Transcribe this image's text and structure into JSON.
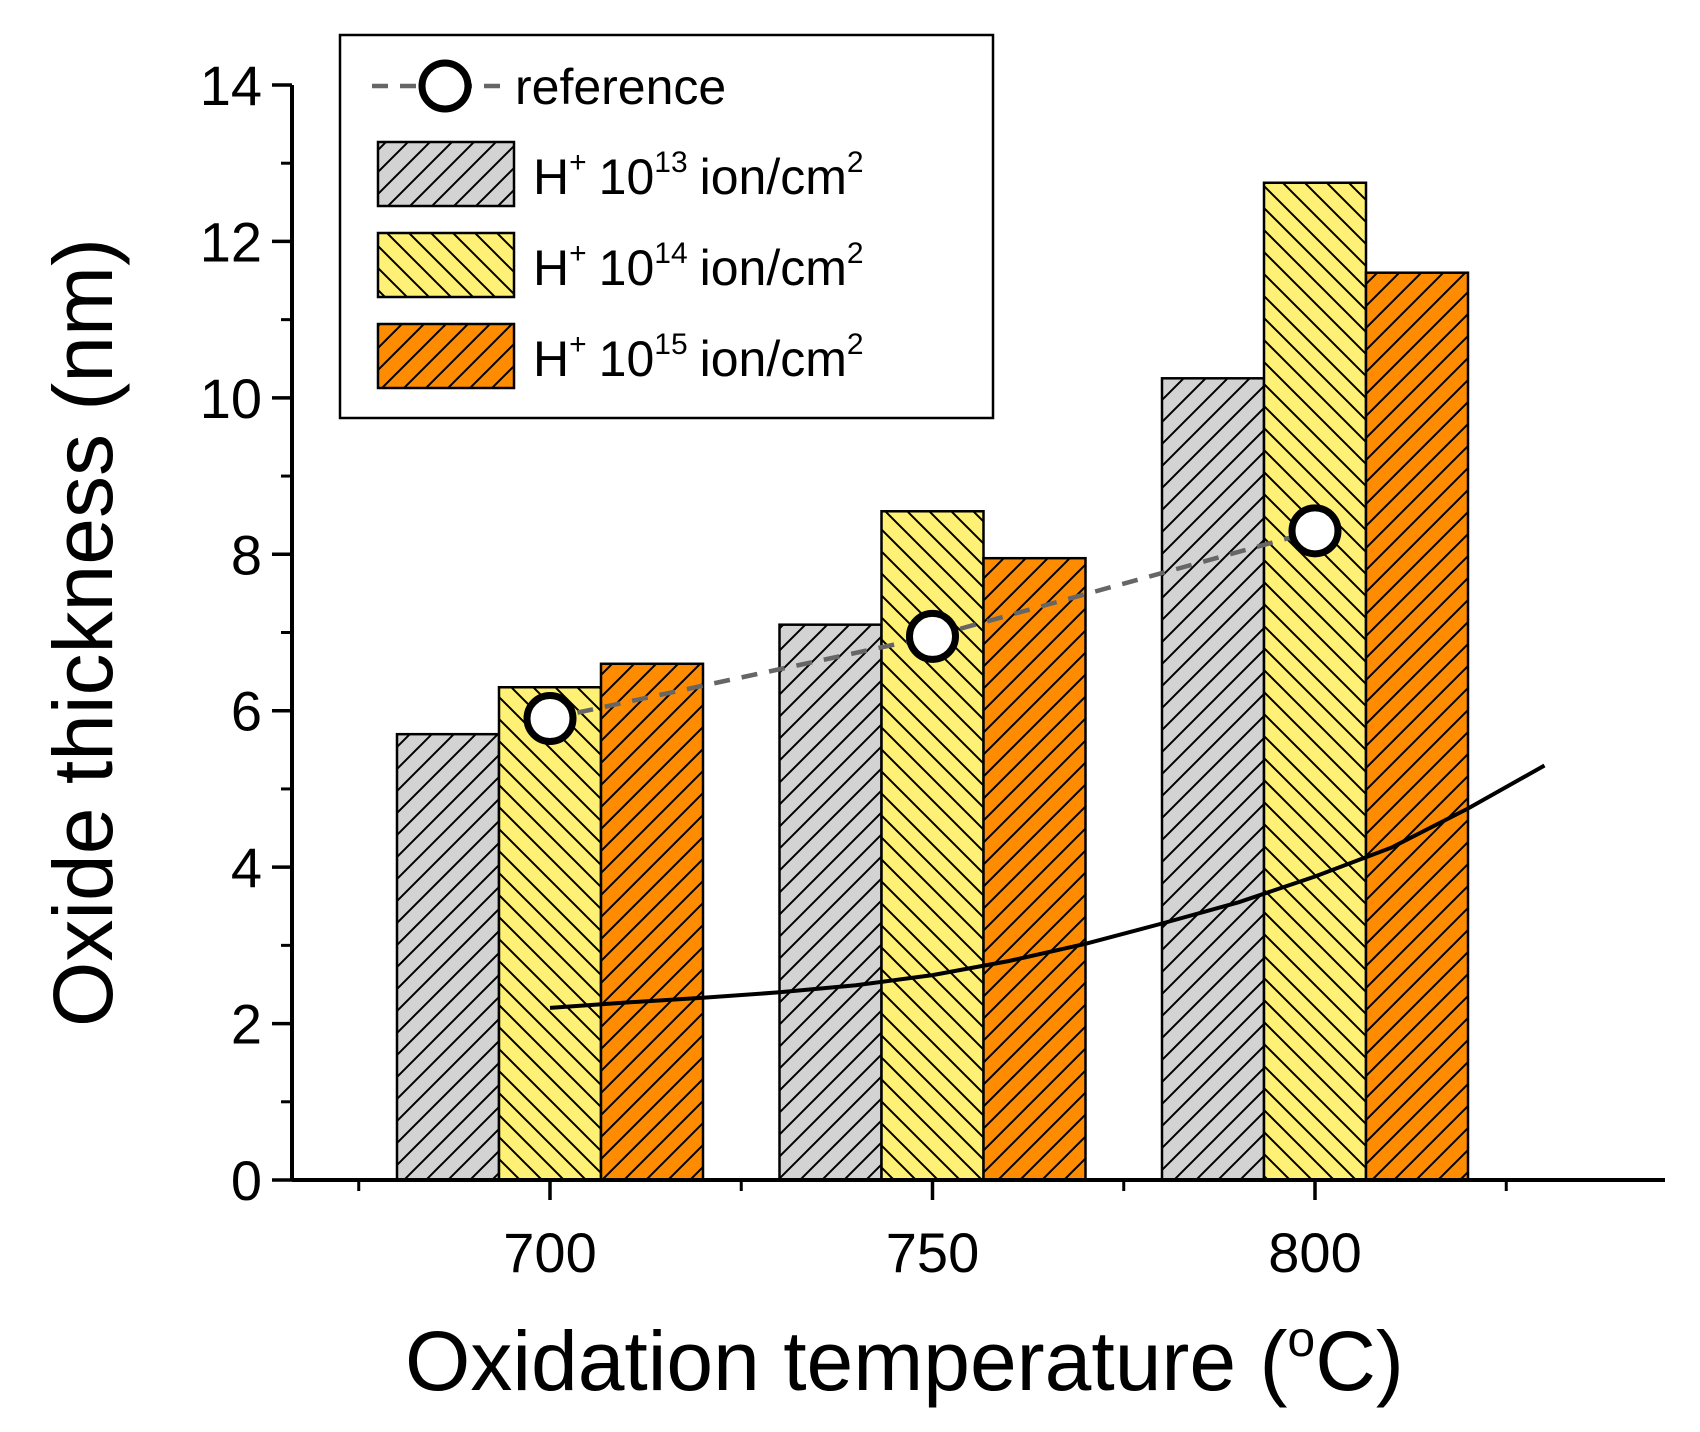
{
  "chart_data": {
    "type": "bar",
    "title": "",
    "xlabel": "Oxidation temperature (",
    "xlabel_sup": "o",
    "xlabel_unit": "C)",
    "ylabel": "Oxide thickness (nm)",
    "ylim": [
      0,
      14
    ],
    "y_ticks": [
      "0",
      "2",
      "4",
      "6",
      "8",
      "10",
      "12",
      "14"
    ],
    "categories": [
      "700",
      "750",
      "800"
    ],
    "series": [
      {
        "name": "H+ 10^13 ion/cm^2",
        "label_base": "H",
        "label_base_sup": "+",
        "label_num": "10",
        "label_exp": "13",
        "label_unit": "ion/cm",
        "label_unit_sup": "2",
        "color": "#d3d3d3",
        "hatch": "forward",
        "values": [
          5.7,
          7.1,
          10.25
        ]
      },
      {
        "name": "H+ 10^14 ion/cm^2",
        "label_base": "H",
        "label_base_sup": "+",
        "label_num": "10",
        "label_exp": "14",
        "label_unit": "ion/cm",
        "label_unit_sup": "2",
        "color": "#fff176",
        "hatch": "back",
        "values": [
          6.3,
          8.55,
          12.75
        ]
      },
      {
        "name": "H+ 10^15 ion/cm^2",
        "label_base": "H",
        "label_base_sup": "+",
        "label_num": "10",
        "label_exp": "15",
        "label_unit": "ion/cm",
        "label_unit_sup": "2",
        "color": "#ff8c00",
        "hatch": "forward",
        "values": [
          6.6,
          7.95,
          11.6
        ]
      }
    ],
    "reference": {
      "name": "reference",
      "x": [
        700,
        750,
        800
      ],
      "y": [
        5.9,
        6.95,
        8.3
      ]
    },
    "fit_curve": {
      "x": [
        700,
        710,
        720,
        730,
        740,
        750,
        760,
        770,
        780,
        790,
        800,
        810,
        820,
        830
      ],
      "y": [
        2.2,
        2.27,
        2.33,
        2.4,
        2.49,
        2.62,
        2.8,
        3.02,
        3.28,
        3.55,
        3.88,
        4.25,
        4.75,
        5.3
      ]
    },
    "legend_position": "top-left",
    "grid": false
  }
}
